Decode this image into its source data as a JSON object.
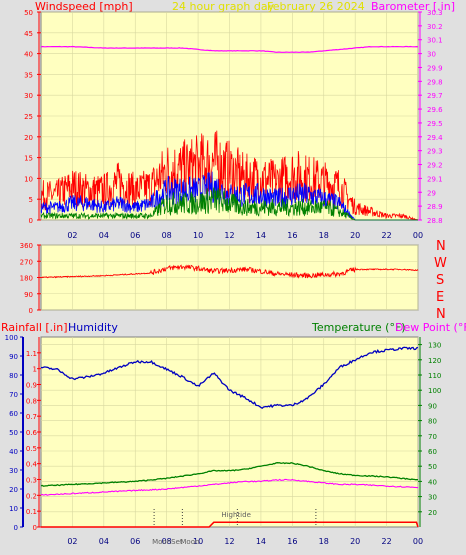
{
  "header": {
    "windspeed_label": "Windspeed [mph]",
    "period_label": "24 hour graph day",
    "date_label": "February 26 2024",
    "barometer_label": "Barometer [.in]"
  },
  "wind_direction_labels": [
    "N",
    "W",
    "S",
    "E",
    "N"
  ],
  "colors": {
    "background": "#e0e0e0",
    "plot_background": "#ffffc0",
    "axis_red": "#ff0000",
    "axis_magenta": "#ff00ff",
    "axis_blue": "#0000c0",
    "axis_green": "#008000",
    "title_yellow": "#e0e000"
  },
  "chart_data": [
    {
      "type": "line",
      "title": "24 hour graph day February 26 2024",
      "x_ticks": [
        "02",
        "04",
        "06",
        "08",
        "10",
        "12",
        "14",
        "16",
        "18",
        "20",
        "22",
        "00"
      ],
      "xlim": [
        0,
        24
      ],
      "left_axis": {
        "label": "Windspeed [mph]",
        "ylim": [
          0,
          50
        ],
        "ticks": [
          "0",
          "5",
          "10",
          "15",
          "20",
          "25",
          "30",
          "35",
          "40",
          "45",
          "50"
        ]
      },
      "right_axis": {
        "label": "Barometer [.in]",
        "ylim": [
          28.8,
          30.3
        ],
        "ticks": [
          "28.8",
          "28.9",
          "29",
          "29.1",
          "29.2",
          "29.3",
          "29.4",
          "29.5",
          "29.6",
          "29.7",
          "29.8",
          "29.9",
          "30",
          "30.1",
          "30.2",
          "30.3"
        ]
      },
      "series": [
        {
          "name": "Barometer",
          "axis": "right",
          "color": "#ff00ff",
          "x": [
            0,
            2,
            4,
            6,
            8,
            9,
            10,
            11,
            12,
            13,
            14,
            15,
            16,
            17,
            18,
            19,
            20,
            21,
            22,
            23,
            24
          ],
          "y": [
            30.05,
            30.05,
            30.04,
            30.04,
            30.04,
            30.04,
            30.03,
            30.02,
            30.02,
            30.02,
            30.02,
            30.01,
            30.01,
            30.01,
            30.02,
            30.03,
            30.04,
            30.05,
            30.05,
            30.05,
            30.05
          ]
        },
        {
          "name": "Gust",
          "axis": "left",
          "color": "#ff0000",
          "style": "spiky",
          "x": [
            0,
            1,
            2,
            3,
            4,
            5,
            6,
            7,
            8,
            9,
            10,
            11,
            12,
            13,
            14,
            15,
            16,
            17,
            18,
            19,
            20,
            21,
            22,
            23,
            24
          ],
          "y": [
            6,
            6,
            8,
            7,
            7,
            9,
            7,
            8,
            12,
            12,
            13,
            14,
            12,
            10,
            10,
            9,
            11,
            10,
            9,
            8,
            3,
            2,
            1,
            1,
            0
          ]
        },
        {
          "name": "Windspeed",
          "axis": "left",
          "color": "#0000ff",
          "style": "spiky",
          "x": [
            0,
            1,
            2,
            3,
            4,
            5,
            6,
            7,
            8,
            9,
            10,
            11,
            12,
            13,
            14,
            15,
            16,
            17,
            18,
            19,
            20,
            21,
            22,
            23,
            24
          ],
          "y": [
            3,
            3,
            4,
            4,
            3,
            4,
            3,
            4,
            7,
            7,
            7,
            8,
            6,
            6,
            6,
            5,
            6,
            6,
            5,
            4,
            0,
            0,
            0,
            0,
            0
          ]
        },
        {
          "name": "Average",
          "axis": "left",
          "color": "#008000",
          "style": "spiky",
          "x": [
            0,
            1,
            2,
            3,
            4,
            5,
            6,
            7,
            8,
            9,
            10,
            11,
            12,
            13,
            14,
            15,
            16,
            17,
            18,
            19,
            20,
            21,
            22,
            23,
            24
          ],
          "y": [
            1,
            1,
            1,
            1,
            1,
            1,
            1,
            1,
            4,
            4,
            4,
            5,
            4,
            3,
            3,
            3,
            3,
            3,
            3,
            2,
            0,
            0,
            0,
            0,
            0
          ]
        }
      ]
    },
    {
      "type": "line",
      "title": "",
      "x_ticks": [],
      "xlim": [
        0,
        24
      ],
      "left_axis": {
        "label": "",
        "ylim": [
          0,
          360
        ],
        "ticks": [
          "0",
          "90",
          "180",
          "270",
          "360"
        ]
      },
      "right_axis_labels": [
        "N",
        "W",
        "S",
        "E",
        "N"
      ],
      "series": [
        {
          "name": "Wind direction",
          "color": "#ff0000",
          "style": "noisy",
          "x": [
            0,
            2,
            4,
            6,
            7,
            8,
            9,
            10,
            11,
            12,
            13,
            14,
            15,
            16,
            17,
            18,
            19,
            20,
            21,
            22,
            23,
            24
          ],
          "y": [
            180,
            185,
            190,
            200,
            205,
            230,
            240,
            230,
            215,
            220,
            225,
            215,
            200,
            195,
            190,
            195,
            200,
            225,
            225,
            225,
            225,
            220
          ]
        }
      ]
    },
    {
      "type": "line",
      "title": "",
      "x_ticks": [
        "02",
        "04",
        "06",
        "08",
        "10",
        "12",
        "14",
        "16",
        "18",
        "20",
        "22",
        "00"
      ],
      "xlim": [
        0,
        24
      ],
      "left_axis_rainfall": {
        "label": "Rainfall [.in]",
        "ylim": [
          0,
          1.2
        ],
        "ticks": [
          "0",
          "0.1",
          "0.2",
          "0.3",
          "0.4",
          "0.5",
          "0.6",
          "0.7",
          "0.8",
          "0.9",
          "1",
          "1.1"
        ]
      },
      "left_axis_humidity": {
        "label": "Humidity",
        "ylim": [
          0,
          100
        ],
        "ticks": [
          "0",
          "10",
          "20",
          "30",
          "40",
          "50",
          "60",
          "70",
          "80",
          "90",
          "100"
        ]
      },
      "right_axis": {
        "label": "Temperature (°F)",
        "ylim": [
          10,
          135
        ],
        "ticks": [
          "20",
          "30",
          "40",
          "50",
          "60",
          "70",
          "80",
          "90",
          "100",
          "110",
          "120",
          "130"
        ]
      },
      "right_axis_label_2": "Dew Point (°F)",
      "annotations": [
        {
          "text": "MoonSet",
          "x": 7.2
        },
        {
          "text": "Moon",
          "x": 9.0
        },
        {
          "text": "Hightide",
          "x": 12.5
        },
        {
          "text": "",
          "x": 17.5
        }
      ],
      "series": [
        {
          "name": "Humidity",
          "axis": "humidity",
          "color": "#0000c0",
          "x": [
            0,
            1,
            2,
            3,
            4,
            5,
            6,
            7,
            8,
            9,
            10,
            11,
            12,
            13,
            14,
            15,
            16,
            17,
            18,
            19,
            20,
            21,
            22,
            23,
            24
          ],
          "y": [
            84,
            83,
            78,
            79,
            81,
            84,
            87,
            87,
            83,
            79,
            74,
            81,
            72,
            68,
            63,
            64,
            64,
            68,
            75,
            84,
            88,
            92,
            93,
            94,
            94
          ]
        },
        {
          "name": "Temperature",
          "axis": "right",
          "color": "#008000",
          "x": [
            0,
            2,
            4,
            6,
            8,
            10,
            11,
            12,
            13,
            14,
            15,
            16,
            17,
            18,
            19,
            20,
            22,
            24
          ],
          "y": [
            37,
            38,
            39,
            40,
            42,
            45,
            47,
            47,
            48,
            50,
            52,
            52,
            50,
            47,
            45,
            44,
            43,
            41
          ]
        },
        {
          "name": "Dew Point",
          "axis": "right",
          "color": "#ff00ff",
          "x": [
            0,
            2,
            4,
            6,
            8,
            10,
            11,
            12,
            13,
            14,
            15,
            16,
            17,
            18,
            19,
            20,
            22,
            24
          ],
          "y": [
            31,
            32,
            33,
            34,
            35,
            37,
            38,
            39,
            40,
            40,
            41,
            41,
            40,
            39,
            38,
            38,
            37,
            36
          ]
        },
        {
          "name": "Rainfall",
          "axis": "rainfall",
          "color": "#ff0000",
          "x": [
            0,
            2,
            4,
            6,
            8,
            10,
            10.7,
            11,
            12,
            14,
            16,
            18,
            20,
            22,
            23.9,
            24
          ],
          "y": [
            0,
            0,
            0,
            0,
            0,
            0,
            0,
            0.03,
            0.03,
            0.03,
            0.03,
            0.03,
            0.03,
            0.03,
            0.03,
            0
          ]
        }
      ]
    }
  ]
}
